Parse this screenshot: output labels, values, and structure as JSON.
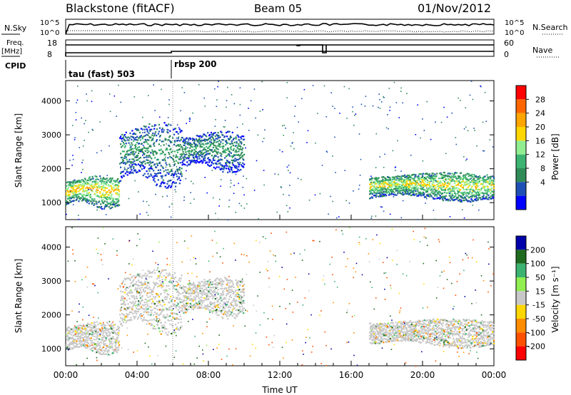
{
  "header": {
    "station": "Blackstone (fitACF)",
    "beam": "Beam 05",
    "date": "01/Nov/2012"
  },
  "top_panels": {
    "nsky_label": "N.Sky",
    "nsky_ticks": [
      "10^5",
      "10^0"
    ],
    "nsearch_label": "N.Search",
    "nsearch_ticks": [
      "10^5",
      "10^0"
    ],
    "freq_label": "Freq.",
    "freq_unit": "[MHz]",
    "freq_ticks": [
      "18",
      "8"
    ],
    "nave_label": "Nave",
    "nave_ticks": [
      "60",
      "0"
    ],
    "cpid_label": "CPID",
    "cpid_segments": [
      {
        "label": "tau (fast) 503",
        "start_h": 0,
        "end_h": 6
      },
      {
        "label": "rbsp 200",
        "start_h": 6,
        "end_h": 24
      }
    ]
  },
  "chart_data": [
    {
      "type": "heatmap",
      "title": "",
      "ylabel": "Slant Range [km]",
      "xlabel": "",
      "xlim_hours": [
        0,
        24
      ],
      "ylim_km": [
        500,
        4600
      ],
      "yticks": [
        1000,
        2000,
        3000,
        4000
      ],
      "colorbar": {
        "label": "Power [dB]",
        "ticks": [
          "28",
          "24",
          "20",
          "16",
          "12",
          "8",
          "4"
        ],
        "colors": [
          "#ff0000",
          "#ff6600",
          "#ffa500",
          "#ffd700",
          "#90ee90",
          "#3cb371",
          "#2e8b57",
          "#1e4fb4",
          "#0000ff"
        ]
      },
      "dominant_echo_bands": [
        {
          "start_h": 0.0,
          "end_h": 3.0,
          "range_km": [
            900,
            1700
          ],
          "power_db": 20
        },
        {
          "start_h": 3.0,
          "end_h": 6.5,
          "range_km": [
            1600,
            3200
          ],
          "power_db": 10
        },
        {
          "start_h": 6.5,
          "end_h": 10.0,
          "range_km": [
            2000,
            3000
          ],
          "power_db": 10
        },
        {
          "start_h": 17.0,
          "end_h": 24.0,
          "range_km": [
            1100,
            1800
          ],
          "power_db": 18
        }
      ]
    },
    {
      "type": "heatmap",
      "title": "",
      "ylabel": "Slant Range [km]",
      "xlabel": "Time UT",
      "xlim_hours": [
        0,
        24
      ],
      "ylim_km": [
        500,
        4600
      ],
      "yticks": [
        1000,
        2000,
        3000,
        4000
      ],
      "xticks": [
        "00:00",
        "04:00",
        "08:00",
        "12:00",
        "16:00",
        "20:00",
        "00:00"
      ],
      "colorbar": {
        "label": "Velocity [m s⁻¹]",
        "ticks": [
          "200",
          "100",
          "50",
          "15",
          "-15",
          "-50",
          "-100",
          "-200"
        ],
        "colors": [
          "#0000aa",
          "#1e6a1e",
          "#3cb371",
          "#90ee50",
          "#c8c8c8",
          "#ffd700",
          "#ff8c00",
          "#ff5000",
          "#ff0000"
        ]
      },
      "dominant_echo_bands": [
        {
          "start_h": 0.0,
          "end_h": 3.0,
          "range_km": [
            900,
            1700
          ],
          "velocity_ms": 0
        },
        {
          "start_h": 3.0,
          "end_h": 6.5,
          "range_km": [
            1600,
            3200
          ],
          "velocity_ms": 0
        },
        {
          "start_h": 6.5,
          "end_h": 10.0,
          "range_km": [
            2000,
            3000
          ],
          "velocity_ms": 20
        },
        {
          "start_h": 17.0,
          "end_h": 24.0,
          "range_km": [
            1100,
            1800
          ],
          "velocity_ms": 0
        }
      ]
    }
  ]
}
